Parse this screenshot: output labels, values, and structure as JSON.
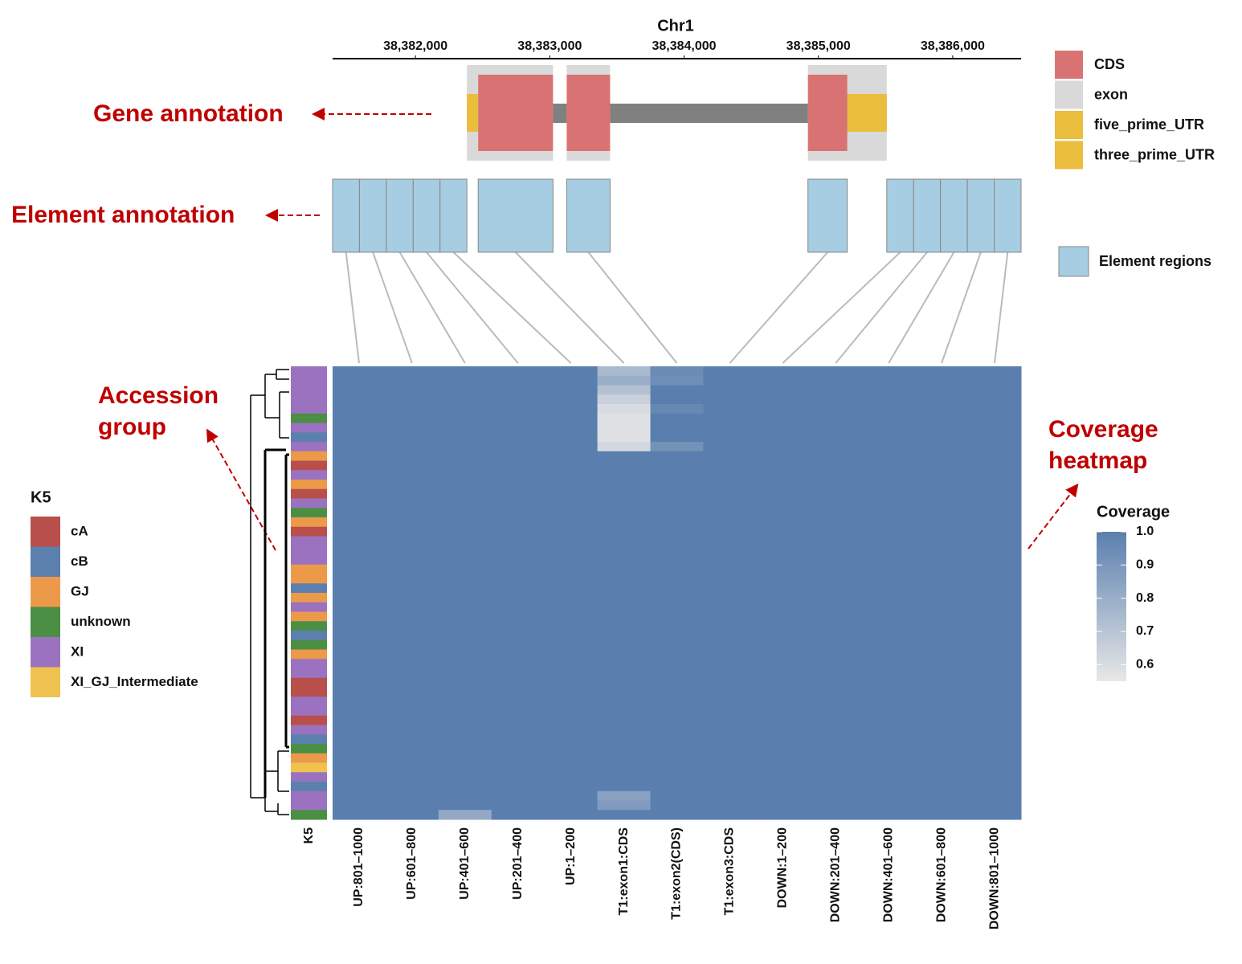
{
  "annotations": {
    "gene": "Gene annotation",
    "element": "Element annotation",
    "accession": [
      "Accession",
      "group"
    ],
    "coverage": [
      "Coverage",
      "heatmap"
    ]
  },
  "chart_data": [
    {
      "type": "gene-track",
      "title": "Chr1",
      "xlim": [
        38381383,
        38386509
      ],
      "xticks": [
        {
          "value": 38382000,
          "label": "38,382,000"
        },
        {
          "value": 38383000,
          "label": "38,383,000"
        },
        {
          "value": 38384000,
          "label": "38,384,000"
        },
        {
          "value": 38385000,
          "label": "38,385,000"
        },
        {
          "value": 38386000,
          "label": "38,386,000"
        }
      ],
      "feature_types": [
        {
          "name": "CDS",
          "color": "#d97373"
        },
        {
          "name": "exon",
          "color": "#d9d9d9"
        },
        {
          "name": "five_prime_UTR",
          "color": "#ebbd3c"
        },
        {
          "name": "three_prime_UTR",
          "color": "#ebbd3c"
        }
      ],
      "transcript": {
        "start": 38382383,
        "end": 38385509,
        "color": "#808080"
      },
      "features": [
        {
          "type": "exon",
          "start": 38382383,
          "end": 38383024
        },
        {
          "type": "exon",
          "start": 38383126,
          "end": 38383449
        },
        {
          "type": "exon",
          "start": 38384922,
          "end": 38385509
        },
        {
          "type": "five_prime_UTR",
          "start": 38382383,
          "end": 38382467
        },
        {
          "type": "three_prime_UTR",
          "start": 38385215,
          "end": 38385509
        },
        {
          "type": "CDS",
          "start": 38382467,
          "end": 38383024
        },
        {
          "type": "CDS",
          "start": 38383126,
          "end": 38383449
        },
        {
          "type": "CDS",
          "start": 38384922,
          "end": 38385215
        }
      ],
      "element_legend": "Element regions",
      "element_color": "#a6cde1",
      "elements": [
        {
          "start": 38381383,
          "end": 38381583
        },
        {
          "start": 38381583,
          "end": 38381783
        },
        {
          "start": 38381783,
          "end": 38381983
        },
        {
          "start": 38381983,
          "end": 38382183
        },
        {
          "start": 38382183,
          "end": 38382383
        },
        {
          "start": 38382467,
          "end": 38383024
        },
        {
          "start": 38383126,
          "end": 38383449
        },
        {
          "start": 38384922,
          "end": 38385215
        },
        {
          "start": 38385509,
          "end": 38385709
        },
        {
          "start": 38385709,
          "end": 38385909
        },
        {
          "start": 38385909,
          "end": 38386109
        },
        {
          "start": 38386109,
          "end": 38386309
        },
        {
          "start": 38386309,
          "end": 38386509
        }
      ]
    },
    {
      "type": "heatmap",
      "columns": [
        "UP:801–1000",
        "UP:601–800",
        "UP:401–600",
        "UP:201–400",
        "UP:1–200",
        "T1:exon1:CDS",
        "T1:exon2(CDS)",
        "T1:exon3:CDS",
        "DOWN:1–200",
        "DOWN:201–400",
        "DOWN:401–600",
        "DOWN:601–800",
        "DOWN:801–1000"
      ],
      "group_title": "K5",
      "group_legend": [
        {
          "name": "cA",
          "color": "#b94f4a"
        },
        {
          "name": "cB",
          "color": "#5b80ad"
        },
        {
          "name": "GJ",
          "color": "#ec9a4a"
        },
        {
          "name": "unknown",
          "color": "#4a8f44"
        },
        {
          "name": "XI",
          "color": "#9b72c0"
        },
        {
          "name": "XI_GJ_Intermediate",
          "color": "#f0c24f"
        }
      ],
      "groups": [
        "XI",
        "XI",
        "XI",
        "XI",
        "XI",
        "unknown",
        "XI",
        "cB",
        "XI",
        "GJ",
        "cA",
        "XI",
        "GJ",
        "cA",
        "XI",
        "unknown",
        "GJ",
        "cA",
        "XI",
        "XI",
        "XI",
        "GJ",
        "GJ",
        "cB",
        "GJ",
        "XI",
        "GJ",
        "unknown",
        "cB",
        "unknown",
        "GJ",
        "XI",
        "XI",
        "cA",
        "cA",
        "XI",
        "XI",
        "cA",
        "XI",
        "cB",
        "unknown",
        "GJ",
        "XI_GJ_Intermediate",
        "XI",
        "cB",
        "XI",
        "XI",
        "unknown"
      ],
      "values": [
        [
          1,
          1,
          1,
          1,
          1,
          0.75,
          0.95,
          1,
          1,
          1,
          1,
          1,
          1
        ],
        [
          1,
          1,
          1,
          1,
          1,
          0.8,
          0.93,
          1,
          1,
          1,
          1,
          1,
          1
        ],
        [
          1,
          1,
          1,
          1,
          1,
          0.72,
          1,
          1,
          1,
          1,
          1,
          1,
          1
        ],
        [
          1,
          1,
          1,
          1,
          1,
          0.65,
          1,
          1,
          1,
          1,
          1,
          1,
          1
        ],
        [
          1,
          1,
          1,
          1,
          1,
          0.6,
          0.96,
          1,
          1,
          1,
          1,
          1,
          1
        ],
        [
          1,
          1,
          1,
          1,
          1,
          0.58,
          1,
          1,
          1,
          1,
          1,
          1,
          1
        ],
        [
          1,
          1,
          1,
          1,
          1,
          0.58,
          1,
          1,
          1,
          1,
          1,
          1,
          1
        ],
        [
          1,
          1,
          1,
          1,
          1,
          0.58,
          1,
          1,
          1,
          1,
          1,
          1,
          1
        ],
        [
          1,
          1,
          1,
          1,
          1,
          0.62,
          0.92,
          1,
          1,
          1,
          1,
          1,
          1
        ],
        [
          1,
          1,
          1,
          1,
          1,
          1,
          1,
          1,
          1,
          1,
          1,
          1,
          1
        ],
        [
          1,
          1,
          1,
          1,
          1,
          1,
          1,
          1,
          1,
          1,
          1,
          1,
          1
        ],
        [
          1,
          1,
          1,
          1,
          1,
          1,
          1,
          1,
          1,
          1,
          1,
          1,
          1
        ],
        [
          1,
          1,
          1,
          1,
          1,
          1,
          1,
          1,
          1,
          1,
          1,
          1,
          1
        ],
        [
          1,
          1,
          1,
          1,
          1,
          1,
          1,
          1,
          1,
          1,
          1,
          1,
          1
        ],
        [
          1,
          1,
          1,
          1,
          1,
          1,
          1,
          1,
          1,
          1,
          1,
          1,
          1
        ],
        [
          1,
          1,
          1,
          1,
          1,
          1,
          1,
          1,
          1,
          1,
          1,
          1,
          1
        ],
        [
          1,
          1,
          1,
          1,
          1,
          1,
          1,
          1,
          1,
          1,
          1,
          1,
          1
        ],
        [
          1,
          1,
          1,
          1,
          1,
          1,
          1,
          1,
          1,
          1,
          1,
          1,
          1
        ],
        [
          1,
          1,
          1,
          1,
          1,
          1,
          1,
          1,
          1,
          1,
          1,
          1,
          1
        ],
        [
          1,
          1,
          1,
          1,
          1,
          1,
          1,
          1,
          1,
          1,
          1,
          1,
          1
        ],
        [
          1,
          1,
          1,
          1,
          1,
          1,
          1,
          1,
          1,
          1,
          1,
          1,
          1
        ],
        [
          1,
          1,
          1,
          1,
          1,
          1,
          1,
          1,
          1,
          1,
          1,
          1,
          1
        ],
        [
          1,
          1,
          1,
          1,
          1,
          1,
          1,
          1,
          1,
          1,
          1,
          1,
          1
        ],
        [
          1,
          1,
          1,
          1,
          1,
          1,
          1,
          1,
          1,
          1,
          1,
          1,
          1
        ],
        [
          1,
          1,
          1,
          1,
          1,
          1,
          1,
          1,
          1,
          1,
          1,
          1,
          1
        ],
        [
          1,
          1,
          1,
          1,
          1,
          1,
          1,
          1,
          1,
          1,
          1,
          1,
          1
        ],
        [
          1,
          1,
          1,
          1,
          1,
          1,
          1,
          1,
          1,
          1,
          1,
          1,
          1
        ],
        [
          1,
          1,
          1,
          1,
          1,
          1,
          1,
          1,
          1,
          1,
          1,
          1,
          1
        ],
        [
          1,
          1,
          1,
          1,
          1,
          1,
          1,
          1,
          1,
          1,
          1,
          1,
          1
        ],
        [
          1,
          1,
          1,
          1,
          1,
          1,
          1,
          1,
          1,
          1,
          1,
          1,
          1
        ],
        [
          1,
          1,
          1,
          1,
          1,
          1,
          1,
          1,
          1,
          1,
          1,
          1,
          1
        ],
        [
          1,
          1,
          1,
          1,
          1,
          1,
          1,
          1,
          1,
          1,
          1,
          1,
          1
        ],
        [
          1,
          1,
          1,
          1,
          1,
          1,
          1,
          1,
          1,
          1,
          1,
          1,
          1
        ],
        [
          1,
          1,
          1,
          1,
          1,
          1,
          1,
          1,
          1,
          1,
          1,
          1,
          1
        ],
        [
          1,
          1,
          1,
          1,
          1,
          1,
          1,
          1,
          1,
          1,
          1,
          1,
          1
        ],
        [
          1,
          1,
          1,
          1,
          1,
          1,
          1,
          1,
          1,
          1,
          1,
          1,
          1
        ],
        [
          1,
          1,
          1,
          1,
          1,
          1,
          1,
          1,
          1,
          1,
          1,
          1,
          1
        ],
        [
          1,
          1,
          1,
          1,
          1,
          1,
          1,
          1,
          1,
          1,
          1,
          1,
          1
        ],
        [
          1,
          1,
          1,
          1,
          1,
          1,
          1,
          1,
          1,
          1,
          1,
          1,
          1
        ],
        [
          1,
          1,
          1,
          1,
          1,
          1,
          1,
          1,
          1,
          1,
          1,
          1,
          1
        ],
        [
          1,
          1,
          1,
          1,
          1,
          1,
          1,
          1,
          1,
          1,
          1,
          1,
          1
        ],
        [
          1,
          1,
          1,
          1,
          1,
          1,
          1,
          1,
          1,
          1,
          1,
          1,
          1
        ],
        [
          1,
          1,
          1,
          1,
          1,
          1,
          1,
          1,
          1,
          1,
          1,
          1,
          1
        ],
        [
          1,
          1,
          1,
          1,
          1,
          1,
          1,
          1,
          1,
          1,
          1,
          1,
          1
        ],
        [
          1,
          1,
          1,
          1,
          1,
          1,
          1,
          1,
          1,
          1,
          1,
          1,
          1
        ],
        [
          1,
          1,
          1,
          1,
          1,
          0.85,
          1,
          1,
          1,
          1,
          1,
          1,
          1
        ],
        [
          1,
          1,
          1,
          1,
          1,
          0.88,
          1,
          1,
          1,
          1,
          1,
          1,
          1
        ],
        [
          1,
          1,
          0.82,
          1,
          1,
          1,
          1,
          1,
          1,
          1,
          1,
          1,
          1
        ]
      ],
      "colorbar": {
        "title": "Coverage",
        "lim": [
          0.55,
          1.0
        ],
        "ticks": [
          0.6,
          0.7,
          0.8,
          0.9,
          {
            "value": 1,
            "label": "1.0"
          }
        ],
        "colors": [
          "#e8e8e8",
          "#5a7fae"
        ]
      }
    }
  ]
}
